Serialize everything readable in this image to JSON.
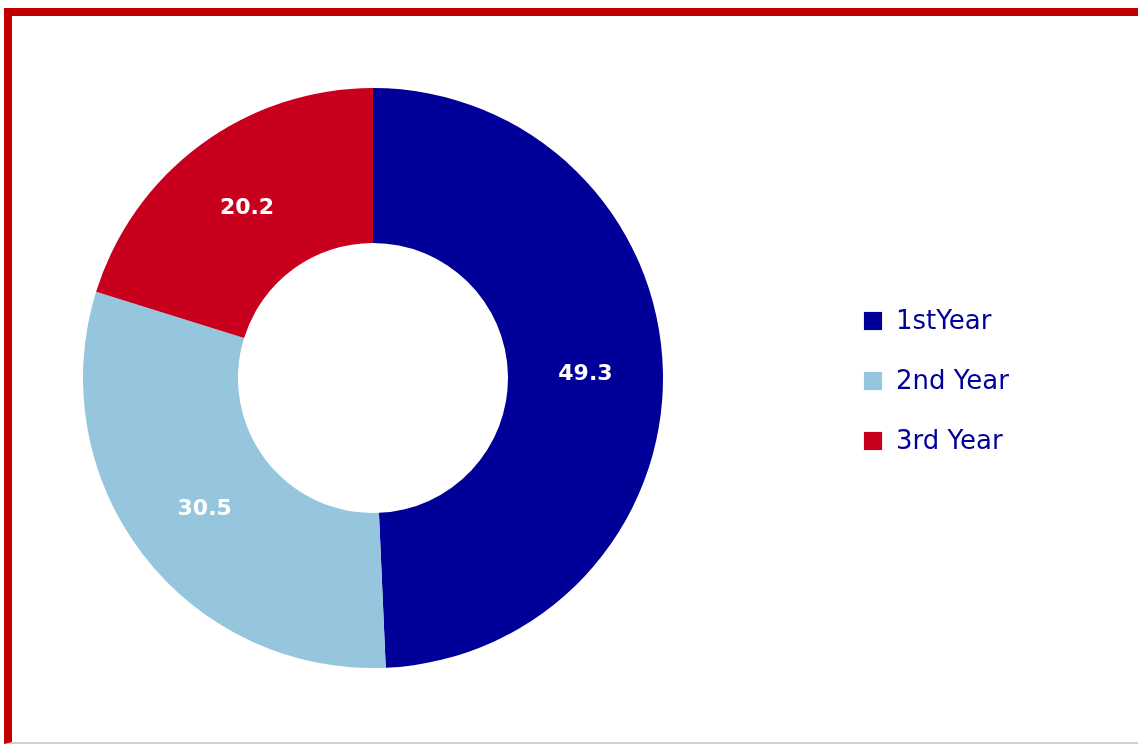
{
  "chart_data": {
    "type": "donut",
    "categories": [
      "1stYear",
      "2nd Year",
      "3rd Year"
    ],
    "values": [
      49.3,
      30.5,
      20.2
    ],
    "colors": [
      "#000099",
      "#96c5de",
      "#c8001e"
    ],
    "data_labels": true,
    "legend": "right"
  }
}
